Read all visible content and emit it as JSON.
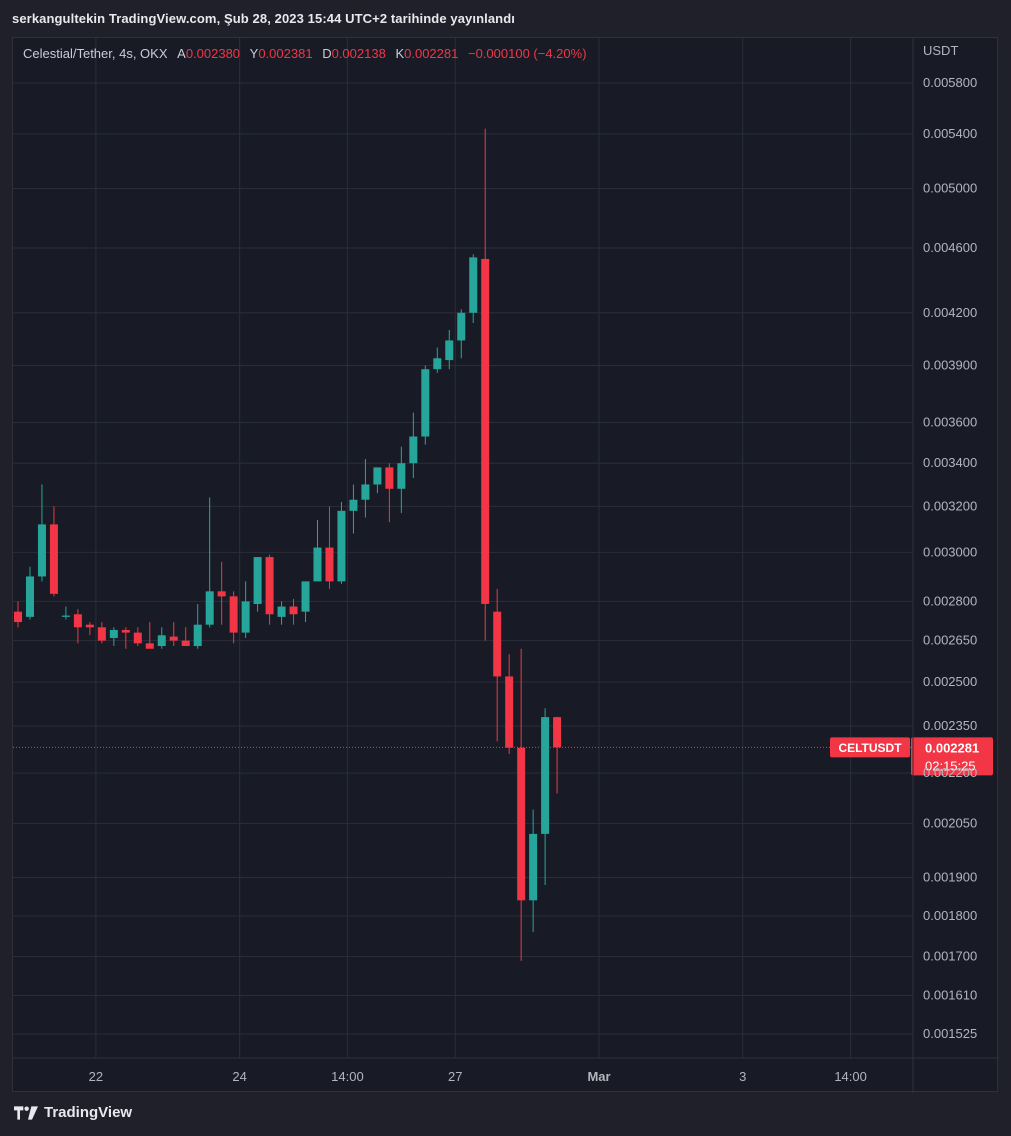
{
  "header": {
    "text": "serkangultekin TradingView.com, Şub 28, 2023 15:44 UTC+2 tarihinde yayınlandı"
  },
  "legend": {
    "symbol": "Celestial/Tether, 4s, OKX",
    "o_label": "A",
    "o_value": "0.002380",
    "h_label": "Y",
    "h_value": "0.002381",
    "l_label": "D",
    "l_value": "0.002138",
    "c_label": "K",
    "c_value": "0.002281",
    "change": "−0.000100 (−4.20%)"
  },
  "footer": {
    "brand": "TradingView"
  },
  "colors": {
    "up": "#26a69a",
    "down": "#f23645",
    "grid": "#2a2e39",
    "axis_text": "#b2b5be",
    "bg": "#181b25"
  },
  "chart_data": {
    "type": "candlestick",
    "y_axis": {
      "unit_label": "USDT",
      "scale": "log",
      "ticks": [
        "0.005800",
        "0.005400",
        "0.005000",
        "0.004600",
        "0.004200",
        "0.003900",
        "0.003600",
        "0.003400",
        "0.003200",
        "0.003000",
        "0.002800",
        "0.002650",
        "0.002500",
        "0.002350",
        "0.002200",
        "0.002050",
        "0.001900",
        "0.001800",
        "0.001700",
        "0.001610",
        "0.001525"
      ]
    },
    "x_axis": {
      "ticks": [
        {
          "label": "22",
          "pos": 6.5
        },
        {
          "label": "24",
          "pos": 18.5
        },
        {
          "label": "14:00",
          "pos": 27.5
        },
        {
          "label": "27",
          "pos": 36.5
        },
        {
          "label": "Mar",
          "pos": 48.5
        },
        {
          "label": "3",
          "pos": 60.5
        },
        {
          "label": "14:00",
          "pos": 69.5
        }
      ]
    },
    "candles": [
      {
        "o": 0.00276,
        "h": 0.0028,
        "l": 0.0027,
        "c": 0.00272
      },
      {
        "o": 0.00274,
        "h": 0.00294,
        "l": 0.00273,
        "c": 0.0029
      },
      {
        "o": 0.0029,
        "h": 0.0033,
        "l": 0.00288,
        "c": 0.00312
      },
      {
        "o": 0.00312,
        "h": 0.0032,
        "l": 0.00282,
        "c": 0.00283
      },
      {
        "o": 0.00274,
        "h": 0.00278,
        "l": 0.00273,
        "c": 0.002745
      },
      {
        "o": 0.00275,
        "h": 0.00277,
        "l": 0.00264,
        "c": 0.0027
      },
      {
        "o": 0.00271,
        "h": 0.00272,
        "l": 0.00267,
        "c": 0.0027
      },
      {
        "o": 0.0027,
        "h": 0.00272,
        "l": 0.00264,
        "c": 0.00265
      },
      {
        "o": 0.00266,
        "h": 0.0027,
        "l": 0.00263,
        "c": 0.00269
      },
      {
        "o": 0.00269,
        "h": 0.0027,
        "l": 0.00262,
        "c": 0.00268
      },
      {
        "o": 0.00268,
        "h": 0.0027,
        "l": 0.00263,
        "c": 0.00264
      },
      {
        "o": 0.00264,
        "h": 0.00272,
        "l": 0.00262,
        "c": 0.00262
      },
      {
        "o": 0.00263,
        "h": 0.0027,
        "l": 0.00262,
        "c": 0.00267
      },
      {
        "o": 0.002665,
        "h": 0.00272,
        "l": 0.00263,
        "c": 0.00265
      },
      {
        "o": 0.00265,
        "h": 0.0027,
        "l": 0.00263,
        "c": 0.00263
      },
      {
        "o": 0.00263,
        "h": 0.00279,
        "l": 0.00262,
        "c": 0.00271
      },
      {
        "o": 0.00271,
        "h": 0.00324,
        "l": 0.0027,
        "c": 0.00284
      },
      {
        "o": 0.00284,
        "h": 0.00296,
        "l": 0.00271,
        "c": 0.00282
      },
      {
        "o": 0.00282,
        "h": 0.00284,
        "l": 0.00264,
        "c": 0.00268
      },
      {
        "o": 0.00268,
        "h": 0.00288,
        "l": 0.00266,
        "c": 0.0028
      },
      {
        "o": 0.00279,
        "h": 0.00298,
        "l": 0.00276,
        "c": 0.00298
      },
      {
        "o": 0.00298,
        "h": 0.00299,
        "l": 0.00271,
        "c": 0.00275
      },
      {
        "o": 0.00274,
        "h": 0.0028,
        "l": 0.00271,
        "c": 0.00278
      },
      {
        "o": 0.00278,
        "h": 0.00281,
        "l": 0.00271,
        "c": 0.00275
      },
      {
        "o": 0.00276,
        "h": 0.00288,
        "l": 0.00272,
        "c": 0.00288
      },
      {
        "o": 0.00288,
        "h": 0.00314,
        "l": 0.00288,
        "c": 0.00302
      },
      {
        "o": 0.00302,
        "h": 0.0032,
        "l": 0.00285,
        "c": 0.00288
      },
      {
        "o": 0.00288,
        "h": 0.00322,
        "l": 0.00287,
        "c": 0.00318
      },
      {
        "o": 0.00318,
        "h": 0.0033,
        "l": 0.00308,
        "c": 0.00323
      },
      {
        "o": 0.00323,
        "h": 0.00342,
        "l": 0.00315,
        "c": 0.0033
      },
      {
        "o": 0.0033,
        "h": 0.00338,
        "l": 0.00326,
        "c": 0.00338
      },
      {
        "o": 0.00338,
        "h": 0.0034,
        "l": 0.00313,
        "c": 0.00328
      },
      {
        "o": 0.00328,
        "h": 0.00348,
        "l": 0.00317,
        "c": 0.0034
      },
      {
        "o": 0.0034,
        "h": 0.00365,
        "l": 0.00333,
        "c": 0.00353
      },
      {
        "o": 0.00353,
        "h": 0.0039,
        "l": 0.00349,
        "c": 0.00388
      },
      {
        "o": 0.00388,
        "h": 0.004,
        "l": 0.00386,
        "c": 0.00394
      },
      {
        "o": 0.00393,
        "h": 0.0041,
        "l": 0.00388,
        "c": 0.00404
      },
      {
        "o": 0.00404,
        "h": 0.00422,
        "l": 0.00394,
        "c": 0.0042
      },
      {
        "o": 0.0042,
        "h": 0.00456,
        "l": 0.00414,
        "c": 0.00454
      },
      {
        "o": 0.00453,
        "h": 0.00544,
        "l": 0.00265,
        "c": 0.00279
      },
      {
        "o": 0.00276,
        "h": 0.00285,
        "l": 0.0023,
        "c": 0.00252
      },
      {
        "o": 0.00252,
        "h": 0.0026,
        "l": 0.00226,
        "c": 0.00228
      },
      {
        "o": 0.00228,
        "h": 0.00262,
        "l": 0.00169,
        "c": 0.00184
      },
      {
        "o": 0.00184,
        "h": 0.00209,
        "l": 0.00176,
        "c": 0.00202
      },
      {
        "o": 0.00202,
        "h": 0.00241,
        "l": 0.00188,
        "c": 0.00238
      },
      {
        "o": 0.00238,
        "h": 0.002381,
        "l": 0.002138,
        "c": 0.002281
      }
    ],
    "last_price": {
      "symbol": "CELTUSDT",
      "value": "0.002281",
      "countdown": "02:15:25"
    }
  }
}
